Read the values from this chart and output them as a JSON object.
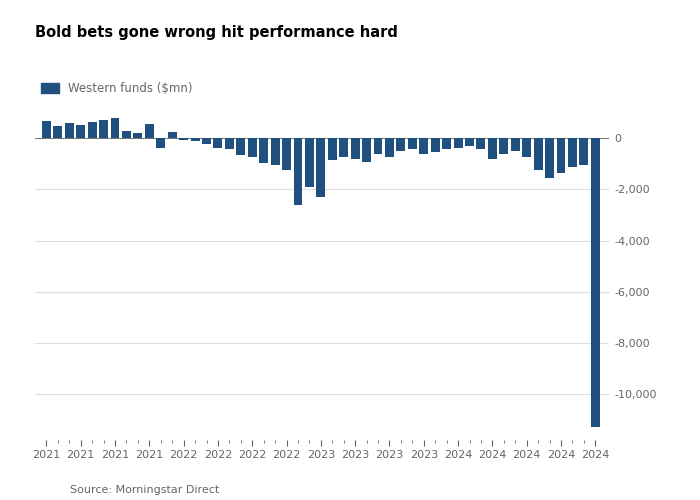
{
  "title": "Bold bets gone wrong hit performance hard",
  "legend_label": "Western funds ($mn)",
  "source": "Source: Morningstar Direct",
  "bar_color": "#1f5080",
  "fig_bg": "#ffffff",
  "ax_bg": "#ffffff",
  "grid_color": "#dddddd",
  "tick_color": "#666666",
  "text_color": "#000000",
  "title_color": "#000000",
  "ylim": [
    -11800,
    1500
  ],
  "yticks": [
    0,
    -2000,
    -4000,
    -6000,
    -8000,
    -10000
  ],
  "values": [
    680,
    480,
    590,
    530,
    640,
    730,
    780,
    280,
    190,
    570,
    -380,
    240,
    -60,
    -110,
    -220,
    -370,
    -420,
    -640,
    -730,
    -950,
    -1050,
    -1250,
    -2600,
    -1900,
    -2300,
    -830,
    -720,
    -820,
    -940,
    -620,
    -720,
    -510,
    -420,
    -620,
    -520,
    -410,
    -360,
    -310,
    -420,
    -820,
    -620,
    -510,
    -720,
    -1250,
    -1550,
    -1350,
    -1120,
    -1050,
    -11300
  ],
  "title_fontsize": 10.5,
  "axis_fontsize": 8,
  "source_fontsize": 8,
  "legend_fontsize": 8.5
}
